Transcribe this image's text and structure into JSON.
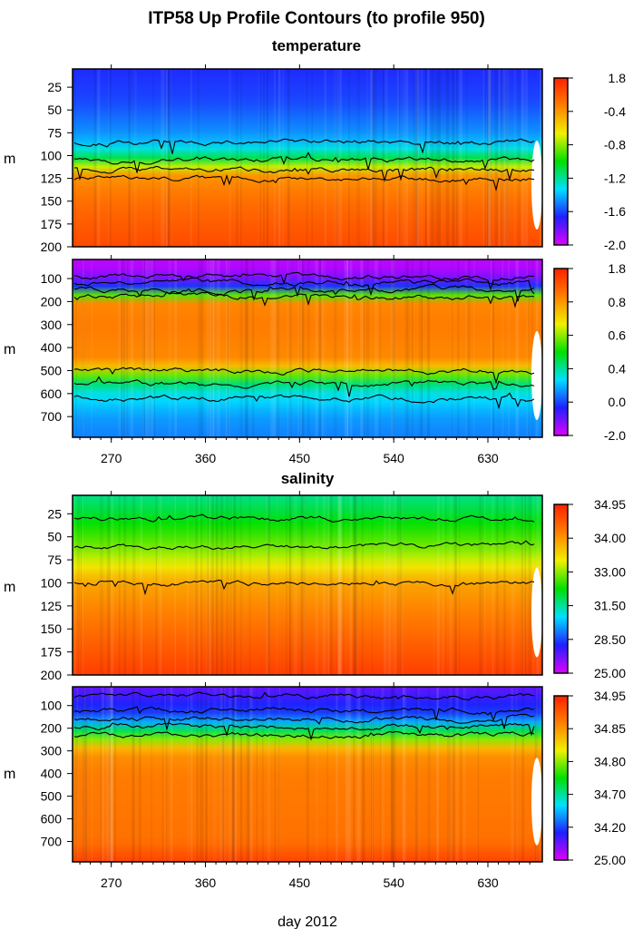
{
  "title": "ITP58 Up Profile Contours (to profile 950)",
  "chart_data": [
    {
      "type": "heatmap",
      "title": "temperature",
      "xlabel": "day 2012",
      "ylabel": "m",
      "xlim": [
        233,
        682
      ],
      "ylim": [
        200,
        5
      ],
      "x_ticks": [
        270,
        360,
        450,
        540,
        630
      ],
      "y_ticks": [
        25,
        50,
        75,
        100,
        125,
        150,
        175,
        200
      ],
      "colorbar_ticks": [
        -2.0,
        -1.6,
        -1.2,
        -0.8,
        -0.4,
        1.8
      ],
      "colorbar_labels": [
        "-2.0",
        "-1.6",
        "-1.2",
        "-0.8",
        "-0.4",
        "1.8"
      ],
      "typical_profile": {
        "depth": [
          5,
          40,
          80,
          100,
          110,
          125,
          150,
          200
        ],
        "value": [
          -1.65,
          -1.6,
          -1.45,
          -1.2,
          -0.8,
          -0.3,
          0.3,
          1.0
        ]
      },
      "contour_depths": [
        85,
        105,
        115,
        125
      ]
    },
    {
      "type": "heatmap",
      "title": "",
      "xlabel": "day 2012",
      "ylabel": "m",
      "xlim": [
        233,
        682
      ],
      "ylim": [
        790,
        17
      ],
      "x_ticks": [
        270,
        360,
        450,
        540,
        630
      ],
      "x_tick_labels": [
        "270",
        "360",
        "450",
        "540",
        "630"
      ],
      "y_ticks": [
        100,
        200,
        300,
        400,
        500,
        600,
        700
      ],
      "colorbar_ticks": [
        -2.0,
        0.0,
        0.4,
        0.6,
        0.8,
        1.8
      ],
      "colorbar_labels": [
        "-2.0",
        "0.0",
        "0.4",
        "0.6",
        "0.8",
        "1.8"
      ],
      "typical_profile": {
        "depth": [
          17,
          80,
          110,
          150,
          200,
          300,
          450,
          500,
          550,
          600,
          700,
          790
        ],
        "value": [
          -1.7,
          -1.5,
          -0.8,
          0.3,
          0.9,
          1.0,
          0.9,
          0.65,
          0.45,
          0.3,
          0.15,
          0.1
        ]
      },
      "contour_depths": [
        90,
        120,
        150,
        180,
        500,
        560,
        620
      ]
    },
    {
      "type": "heatmap",
      "title": "salinity",
      "xlabel": "day 2012",
      "ylabel": "m",
      "xlim": [
        233,
        682
      ],
      "ylim": [
        200,
        5
      ],
      "x_ticks": [
        270,
        360,
        450,
        540,
        630
      ],
      "y_ticks": [
        25,
        50,
        75,
        100,
        125,
        150,
        175,
        200
      ],
      "colorbar_ticks": [
        25,
        28.5,
        31.5,
        33,
        34,
        34.95
      ],
      "colorbar_labels": [
        "25.00",
        "28.50",
        "31.50",
        "33.00",
        "34.00",
        "34.95"
      ],
      "typical_profile": {
        "depth": [
          5,
          25,
          50,
          75,
          100,
          150,
          200
        ],
        "value": [
          31.6,
          32.0,
          32.6,
          33.2,
          33.9,
          34.3,
          34.7
        ]
      },
      "contour_depths": [
        30,
        60,
        100
      ]
    },
    {
      "type": "heatmap",
      "title": "",
      "xlabel": "day 2012",
      "ylabel": "m",
      "xlim": [
        233,
        682
      ],
      "ylim": [
        790,
        17
      ],
      "x_ticks": [
        270,
        360,
        450,
        540,
        630
      ],
      "x_tick_labels": [
        "270",
        "360",
        "450",
        "540",
        "630"
      ],
      "y_ticks": [
        100,
        200,
        300,
        400,
        500,
        600,
        700
      ],
      "colorbar_ticks": [
        25,
        34.2,
        34.7,
        34.8,
        34.85,
        34.95
      ],
      "colorbar_labels": [
        "25.00",
        "34.20",
        "34.70",
        "34.80",
        "34.85",
        "34.95"
      ],
      "typical_profile": {
        "depth": [
          17,
          100,
          150,
          200,
          250,
          300,
          400,
          700,
          790
        ],
        "value": [
          30,
          33,
          34.2,
          34.7,
          34.8,
          34.85,
          34.87,
          34.88,
          34.92
        ]
      },
      "contour_depths": [
        60,
        120,
        160,
        190,
        230
      ]
    }
  ],
  "palette": [
    "#e000ff",
    "#2020ff",
    "#00e0ff",
    "#00e000",
    "#f0f000",
    "#ff8000",
    "#ff2000"
  ]
}
